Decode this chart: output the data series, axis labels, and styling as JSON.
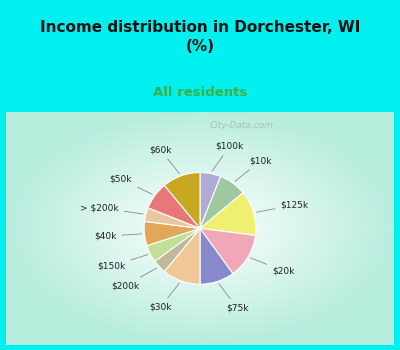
{
  "title": "Income distribution in Dorchester, WI\n(%)",
  "subtitle": "All residents",
  "title_color": "#111111",
  "subtitle_color": "#3cb043",
  "bg_cyan": "#00f0f0",
  "watermark": "City-Data.com",
  "labels": [
    "$100k",
    "$10k",
    "$125k",
    "$20k",
    "$75k",
    "$30k",
    "$200k",
    "$150k",
    "$40k",
    "> $200k",
    "$50k",
    "$60k"
  ],
  "values": [
    6,
    8,
    13,
    13,
    10,
    11,
    4,
    5,
    7,
    4,
    8,
    11
  ],
  "colors": [
    "#b0aad8",
    "#a0c8a0",
    "#f0f070",
    "#f0a8b8",
    "#8888cc",
    "#f0c898",
    "#c0b898",
    "#c0e098",
    "#e0a858",
    "#e8c8a0",
    "#e87878",
    "#c8a820"
  ]
}
